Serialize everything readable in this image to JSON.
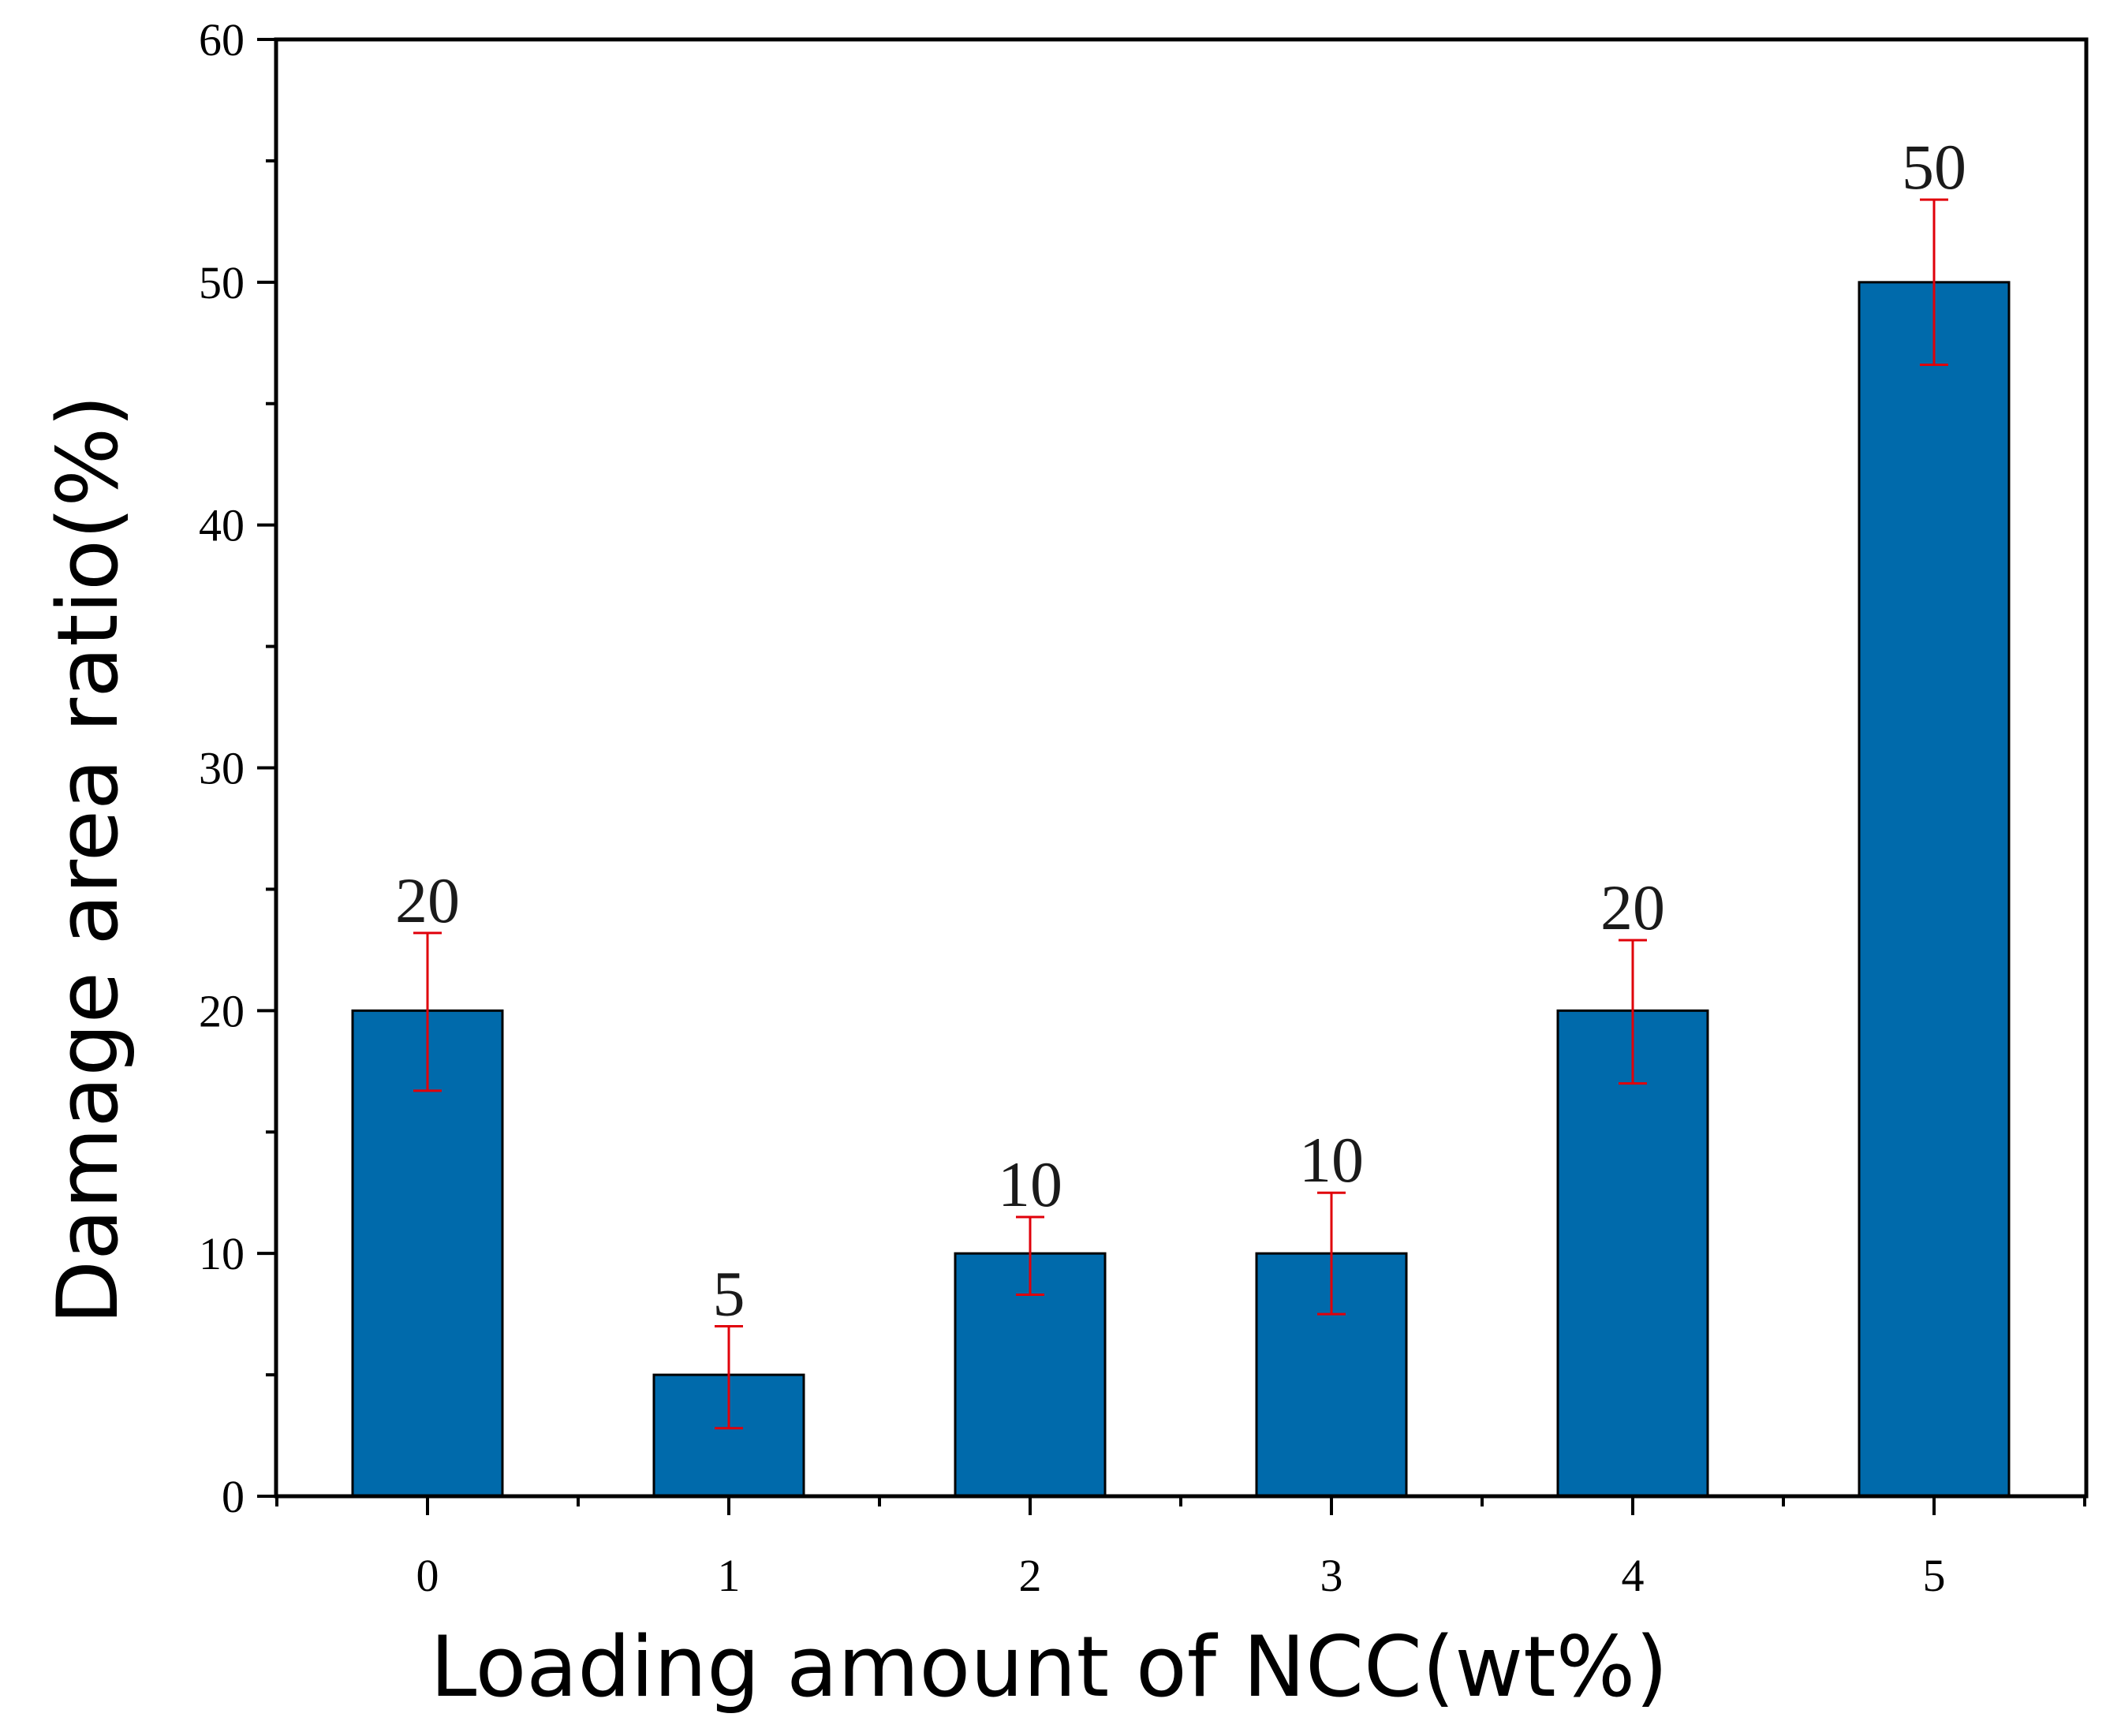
{
  "chart_data": {
    "type": "bar",
    "title": "",
    "xlabel": "Loading amount of NCC(wt%)",
    "ylabel": "Damage area ratio(%)",
    "categories": [
      "0",
      "1",
      "2",
      "3",
      "4",
      "5"
    ],
    "values": [
      20,
      5,
      10,
      10,
      20,
      50
    ],
    "data_labels": [
      "20",
      "5",
      "10",
      "10",
      "20",
      "50"
    ],
    "error_high": [
      23.2,
      7.0,
      11.5,
      12.5,
      22.9,
      53.4
    ],
    "error_low": [
      16.7,
      2.8,
      8.3,
      7.5,
      17.0,
      46.6
    ],
    "ylim": [
      0,
      60
    ],
    "yticks": [
      "0",
      "10",
      "20",
      "30",
      "40",
      "50",
      "60"
    ],
    "grid": false,
    "bar_color": "#006aab",
    "error_color": "#e0000a"
  }
}
